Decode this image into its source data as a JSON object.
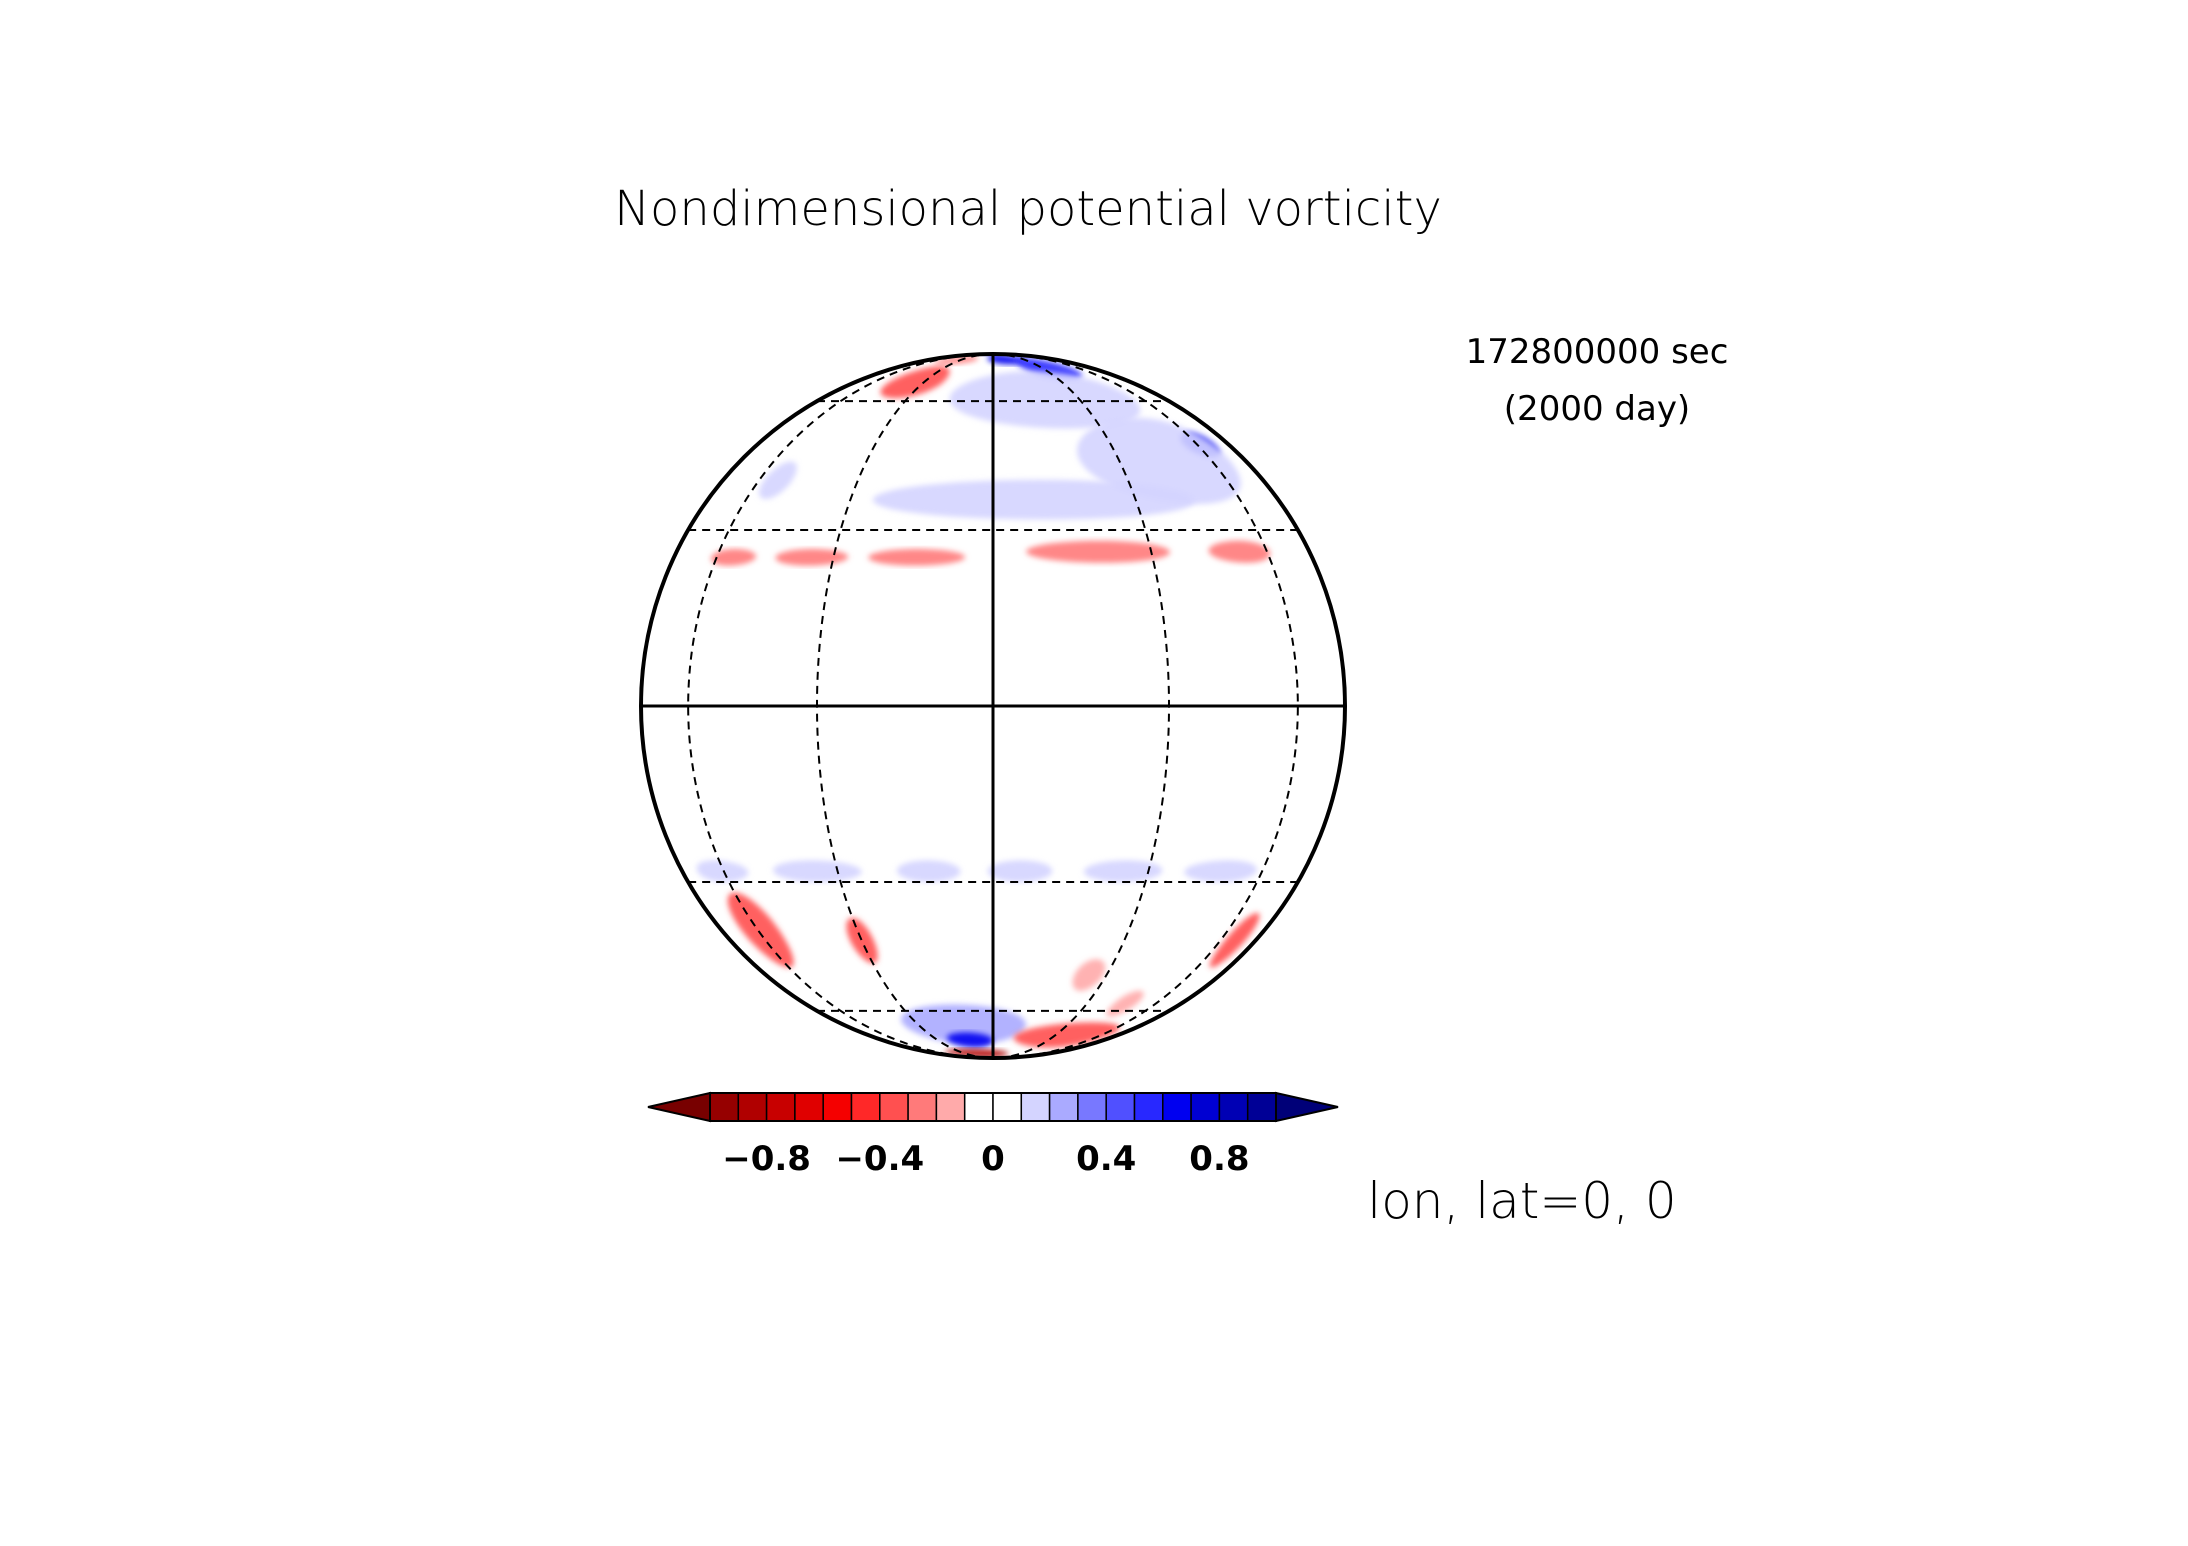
{
  "title": "Nondimensional potential vorticity",
  "time": {
    "seconds_label": "172800000 sec",
    "days_label": "(2000 day)"
  },
  "projection_label": "lon, lat=0, 0",
  "colorbar": {
    "tick_labels": [
      "−0.8",
      "−0.4",
      "0",
      "0.4",
      "0.8"
    ],
    "tick_values": [
      -0.8,
      -0.4,
      0,
      0.4,
      0.8
    ],
    "colors": [
      "#960000",
      "#b00000",
      "#c80000",
      "#e00000",
      "#f50000",
      "#ff2828",
      "#ff5050",
      "#ff7a7a",
      "#ffaaaa",
      "#ffffff",
      "#ffffff",
      "#d4d4ff",
      "#aaaaff",
      "#7878ff",
      "#5050ff",
      "#2828ff",
      "#0000f0",
      "#0000d2",
      "#0000b4",
      "#000096"
    ],
    "under_color": "#780000",
    "over_color": "#000078"
  },
  "map": {
    "projection": "orthographic",
    "center_lon": 0,
    "center_lat": 0,
    "parallels": [
      -60,
      -30,
      30,
      60
    ],
    "meridians": [
      -60,
      -30,
      30,
      60
    ],
    "solid_lines": [
      "equator",
      "prime-meridian"
    ],
    "field_blobs": [
      {
        "lon": -12,
        "lat": 88,
        "dlon": 40,
        "dlat": 4,
        "value": 0.5
      },
      {
        "lon": 12,
        "lat": 82,
        "dlon": 18,
        "dlat": 6,
        "value": 0.6
      },
      {
        "lon": 35,
        "lat": 75,
        "dlon": 18,
        "dlat": 7,
        "value": 0.5
      },
      {
        "lon": 20,
        "lat": 62,
        "dlon": 35,
        "dlat": 10,
        "value": 0.2
      },
      {
        "lon": 62,
        "lat": 48,
        "dlon": 8,
        "dlat": 3,
        "value": 0.6
      },
      {
        "lon": 45,
        "lat": 45,
        "dlon": 25,
        "dlat": 10,
        "value": 0.2
      },
      {
        "lon": 10,
        "lat": 36,
        "dlon": 35,
        "dlat": 4,
        "value": 0.2
      },
      {
        "lon": -53,
        "lat": 40,
        "dlon": 5,
        "dlat": 4,
        "value": 0.2
      },
      {
        "lon": -35,
        "lat": 68,
        "dlon": 14,
        "dlat": 7,
        "value": -0.35
      },
      {
        "lon": -35,
        "lat": 80,
        "dlon": 20,
        "dlat": 4,
        "value": -0.25
      },
      {
        "lon": -55,
        "lat": 25,
        "dlon": 7,
        "dlat": 1.5,
        "value": -0.25
      },
      {
        "lon": -35,
        "lat": 25,
        "dlon": 8,
        "dlat": 1.5,
        "value": -0.25
      },
      {
        "lon": -14,
        "lat": 25,
        "dlon": 9,
        "dlat": 1.5,
        "value": -0.25
      },
      {
        "lon": 20,
        "lat": 26,
        "dlon": 14,
        "dlat": 2,
        "value": -0.25
      },
      {
        "lon": 52,
        "lat": 26,
        "dlon": 9,
        "dlat": 2,
        "value": -0.25
      },
      {
        "lon": -62,
        "lat": -28,
        "dlon": 10,
        "dlat": 2,
        "value": 0.15
      },
      {
        "lon": -35,
        "lat": -28,
        "dlon": 10,
        "dlat": 2,
        "value": 0.15
      },
      {
        "lon": -12,
        "lat": -28,
        "dlon": 6,
        "dlat": 2,
        "value": 0.15
      },
      {
        "lon": 5,
        "lat": -28,
        "dlon": 6,
        "dlat": 2,
        "value": 0.15
      },
      {
        "lon": 25,
        "lat": -28,
        "dlon": 8,
        "dlat": 2,
        "value": 0.15
      },
      {
        "lon": 48,
        "lat": -28,
        "dlon": 10,
        "dlat": 2,
        "value": 0.15
      },
      {
        "lon": -12,
        "lat": -66,
        "dlon": 25,
        "dlat": 8,
        "value": 0.25
      },
      {
        "lon": -12,
        "lat": -72,
        "dlon": 12,
        "dlat": 4,
        "value": 0.6
      },
      {
        "lon": -60,
        "lat": -40,
        "dlon": 8,
        "dlat": 8,
        "value": -0.3
      },
      {
        "lon": -30,
        "lat": -42,
        "dlon": 3,
        "dlat": 5,
        "value": -0.3
      },
      {
        "lon": -18,
        "lat": -82,
        "dlon": 35,
        "dlat": 5,
        "value": -0.8
      },
      {
        "lon": 40,
        "lat": -70,
        "dlon": 30,
        "dlat": 6,
        "value": -0.3
      },
      {
        "lon": 68,
        "lat": -42,
        "dlon": 6,
        "dlat": 6,
        "value": -0.3
      },
      {
        "lon": 25,
        "lat": -50,
        "dlon": 4,
        "dlat": 4,
        "value": -0.2
      },
      {
        "lon": 45,
        "lat": -58,
        "dlon": 5,
        "dlat": 4,
        "value": -0.2
      }
    ]
  }
}
